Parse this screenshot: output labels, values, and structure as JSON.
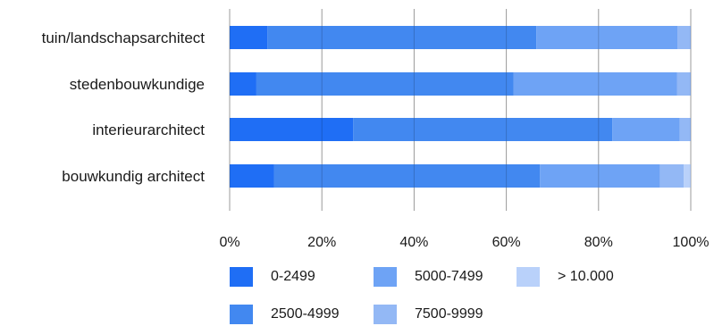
{
  "chart_data": {
    "type": "bar",
    "orientation": "horizontal",
    "stacked": true,
    "normalized_percent": true,
    "categories": [
      "tuin/landschapsarchitect",
      "stedenbouwkundige",
      "interieurarchitect",
      "bouwkundig architect"
    ],
    "series": [
      {
        "name": "0-2499",
        "color": "#1f6ef5",
        "values": [
          8.2,
          5.8,
          26.8,
          9.6
        ]
      },
      {
        "name": "2500-4999",
        "color": "#4288f0",
        "values": [
          58.3,
          55.8,
          56.2,
          57.7
        ]
      },
      {
        "name": "5000-7499",
        "color": "#6ea3f5",
        "values": [
          30.6,
          35.4,
          14.6,
          26.0
        ]
      },
      {
        "name": "7500-9999",
        "color": "#93b8f5",
        "values": [
          2.9,
          3.0,
          2.4,
          5.2
        ]
      },
      {
        "name": "> 10.000",
        "color": "#b9d1fa",
        "values": [
          0,
          0,
          0,
          1.5
        ]
      }
    ],
    "x_ticks": [
      "0%",
      "20%",
      "40%",
      "60%",
      "80%",
      "100%"
    ],
    "xlim": [
      0,
      100
    ],
    "grid": true,
    "legend_position": "bottom",
    "title": "",
    "xlabel": "",
    "ylabel": ""
  }
}
